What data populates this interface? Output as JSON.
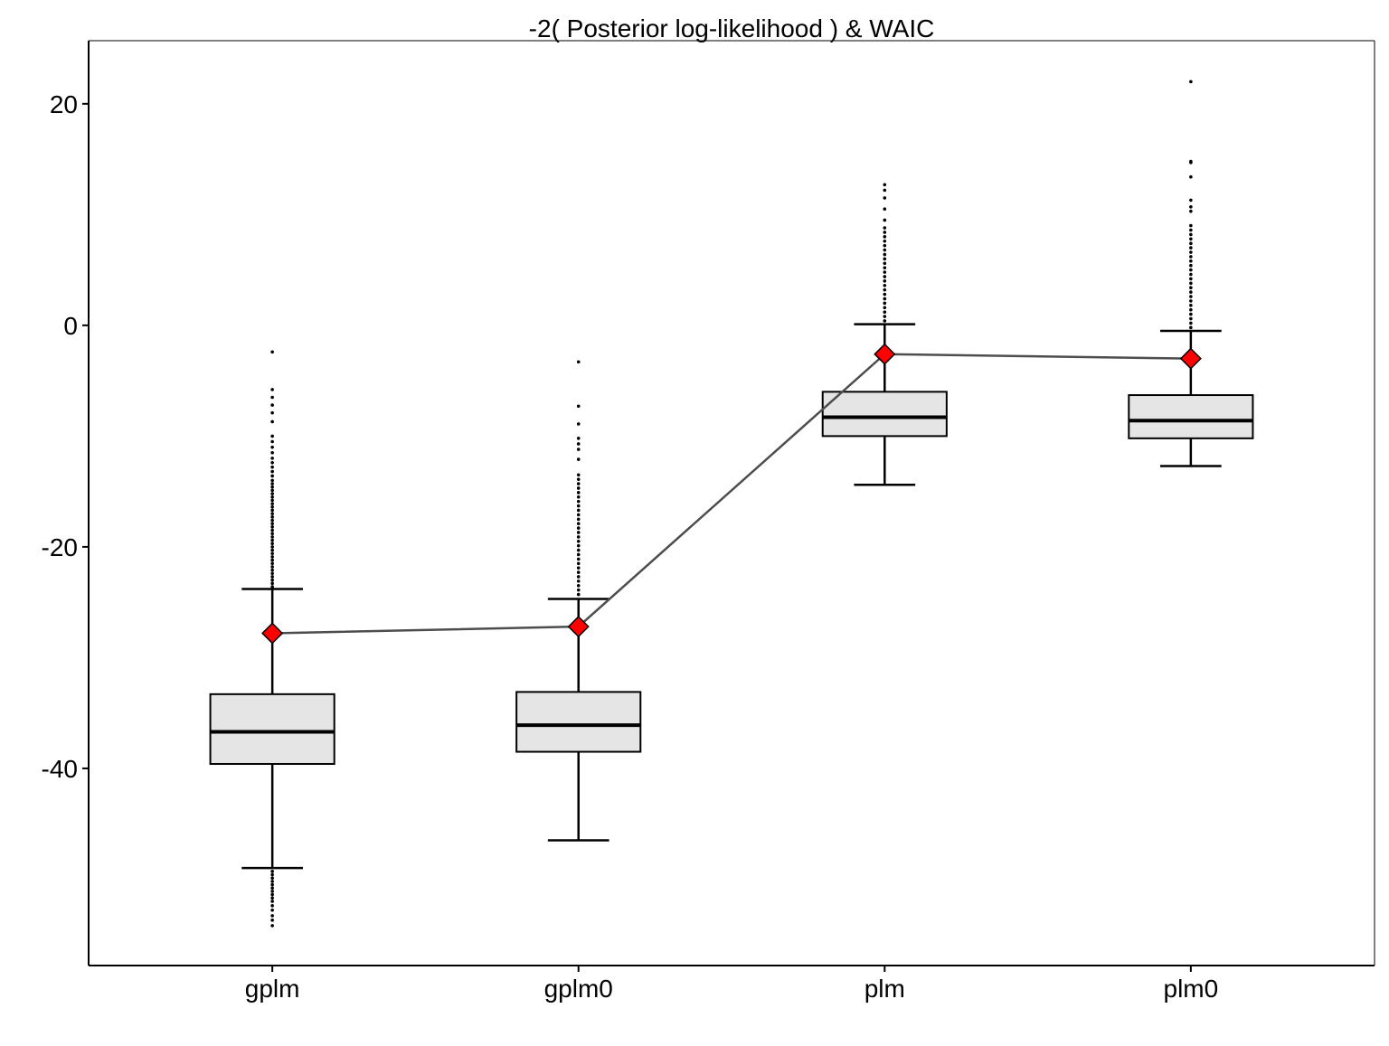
{
  "chart_data": {
    "type": "box",
    "title": "-2( Posterior log-likelihood ) & WAIC",
    "xlabel": "",
    "ylabel": "",
    "ylim": [
      -57.8,
      25.7
    ],
    "y_ticks": [
      20,
      0,
      -20,
      -40
    ],
    "y_tick_labels": [
      "20",
      "0",
      "-20",
      "-40"
    ],
    "categories": [
      "gplm",
      "gplm0",
      "plm",
      "plm0"
    ],
    "grid": false,
    "box_fill": "#e5e5e5",
    "waic_color": "#ff0000",
    "line_color": "#4d4d4d",
    "boxes": [
      {
        "category": "gplm",
        "lower_whisker": -49.0,
        "q1": -39.6,
        "median": -36.7,
        "q3": -33.3,
        "upper_whisker": -23.8,
        "outliers": [
          -2.4,
          -5.8,
          -6.5,
          -7.2,
          -7.9,
          -8.7,
          -10.0,
          -10.5,
          -11.0,
          -11.5,
          -12.0,
          -12.4,
          -12.8,
          -13.2,
          -13.6,
          -14.0,
          -14.3,
          -14.6,
          -14.9,
          -15.2,
          -15.5,
          -15.8,
          -16.1,
          -16.4,
          -16.7,
          -17.0,
          -17.3,
          -17.6,
          -17.9,
          -18.2,
          -18.5,
          -18.8,
          -19.1,
          -19.4,
          -19.7,
          -20.0,
          -20.3,
          -20.6,
          -20.9,
          -21.2,
          -21.5,
          -21.8,
          -22.1,
          -22.4,
          -22.7,
          -23.0,
          -23.3,
          -23.6,
          -49.3,
          -49.6,
          -49.9,
          -50.2,
          -50.5,
          -50.8,
          -51.1,
          -51.4,
          -51.7,
          -52.0,
          -52.4,
          -52.8,
          -53.3,
          -53.7,
          -54.2
        ],
        "waic": -27.8
      },
      {
        "category": "gplm0",
        "lower_whisker": -46.5,
        "q1": -38.5,
        "median": -36.1,
        "q3": -33.1,
        "upper_whisker": -24.7,
        "outliers": [
          -3.3,
          -7.3,
          -8.9,
          -10.2,
          -10.7,
          -11.2,
          -12.1,
          -13.5,
          -13.9,
          -14.3,
          -14.7,
          -15.1,
          -15.5,
          -15.9,
          -16.3,
          -16.7,
          -17.1,
          -17.5,
          -17.9,
          -18.3,
          -18.7,
          -19.1,
          -19.5,
          -19.9,
          -20.3,
          -20.7,
          -21.1,
          -21.5,
          -21.9,
          -22.3,
          -22.7,
          -23.1,
          -23.5,
          -23.9,
          -24.3
        ],
        "waic": -27.2
      },
      {
        "category": "plm",
        "lower_whisker": -14.4,
        "q1": -10.0,
        "median": -8.3,
        "q3": -6.0,
        "upper_whisker": 0.1,
        "outliers": [
          12.7,
          12.2,
          11.5,
          10.5,
          9.5,
          8.8,
          8.4,
          8.0,
          7.6,
          7.2,
          6.8,
          6.4,
          6.0,
          5.6,
          5.2,
          4.8,
          4.4,
          4.0,
          3.6,
          3.2,
          2.8,
          2.4,
          2.0,
          1.6,
          1.2,
          0.8,
          0.4
        ],
        "waic": -2.6
      },
      {
        "category": "plm0",
        "lower_whisker": -12.7,
        "q1": -10.2,
        "median": -8.6,
        "q3": -6.3,
        "upper_whisker": -0.5,
        "outliers": [
          22.0,
          14.8,
          14.7,
          13.4,
          11.3,
          10.7,
          10.3,
          9.0,
          8.6,
          8.2,
          7.8,
          7.4,
          7.0,
          6.6,
          6.2,
          5.8,
          5.4,
          5.0,
          4.6,
          4.2,
          3.8,
          3.4,
          3.0,
          2.6,
          2.2,
          1.8,
          1.4,
          1.0,
          0.6,
          0.2,
          -0.2
        ],
        "waic": -3.0
      }
    ]
  }
}
